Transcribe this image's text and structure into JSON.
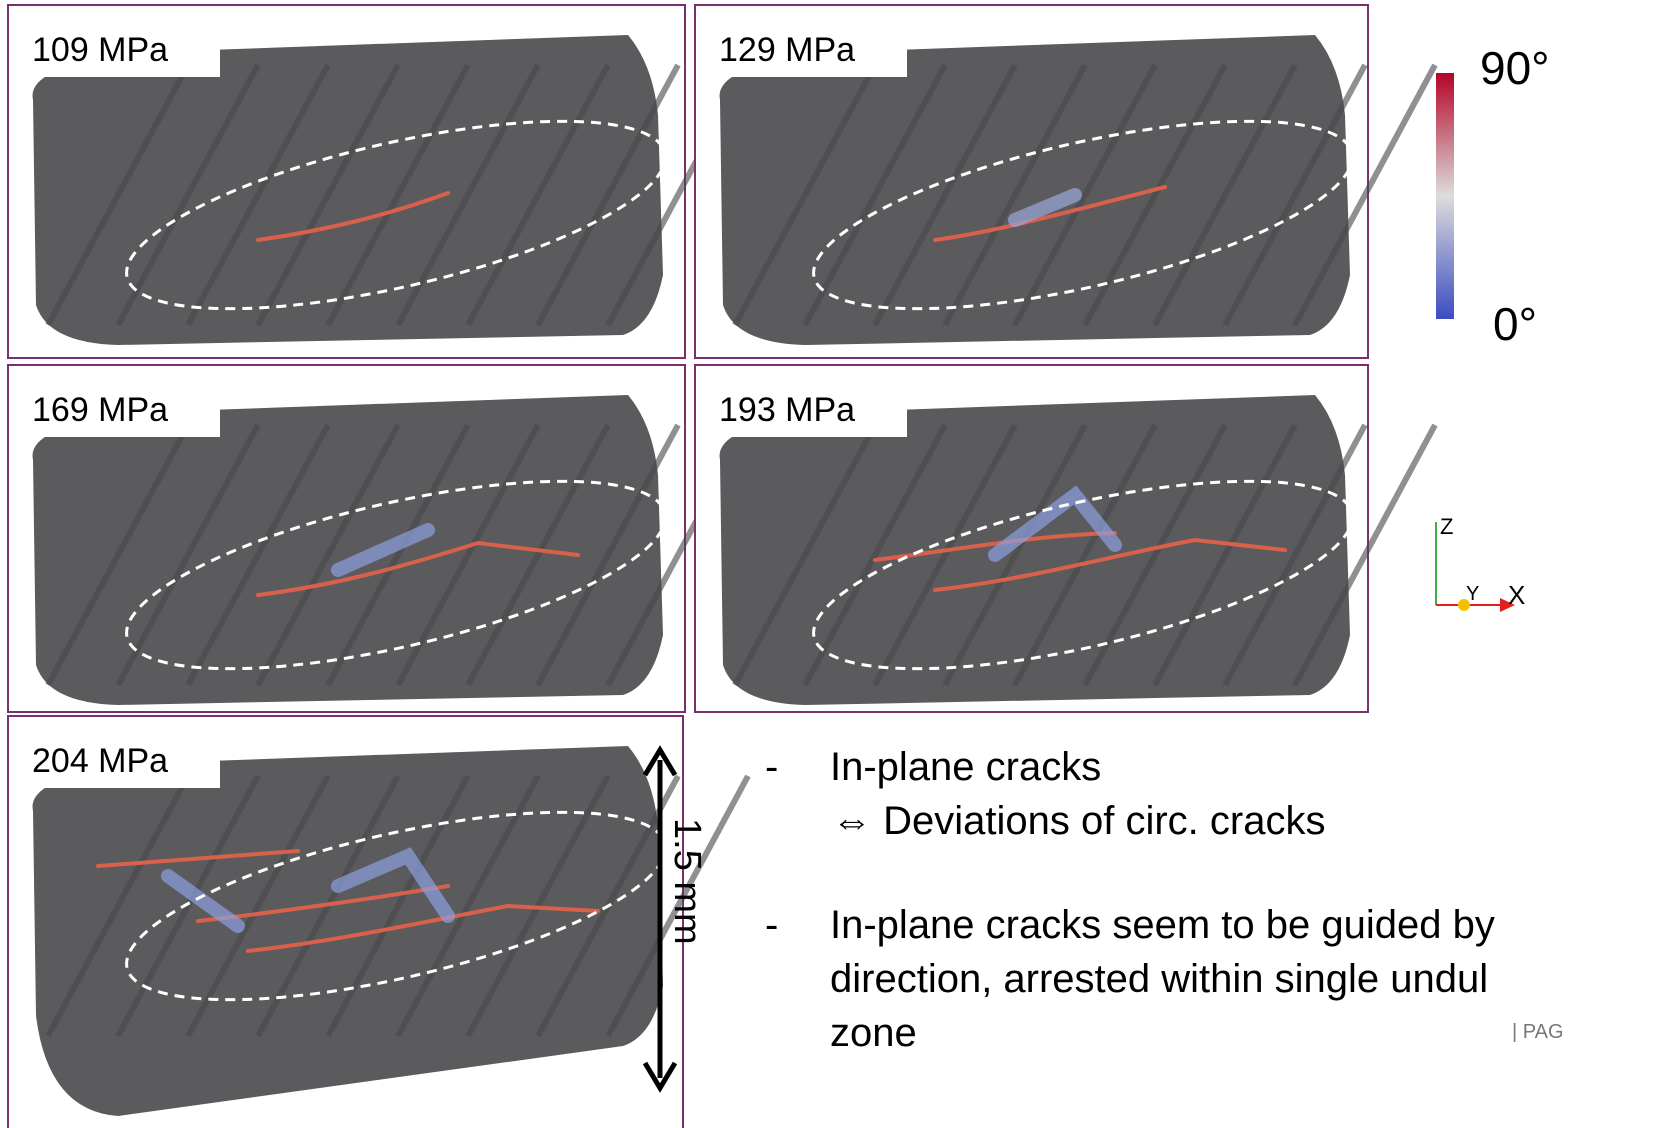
{
  "panels": [
    {
      "label": "109 MPa"
    },
    {
      "label": "129 MPa"
    },
    {
      "label": "169 MPa"
    },
    {
      "label": "193 MPa"
    },
    {
      "label": "204 MPa"
    }
  ],
  "colorbar": {
    "max_label": "90°",
    "min_label": "0°"
  },
  "axes": {
    "z": "Z",
    "y": "Y",
    "x": "X"
  },
  "scale_bar": "1.5 mm",
  "bullets": [
    {
      "marker": "-",
      "lines": [
        "In-plane cracks",
        "⇔  Deviations of circ. cracks"
      ]
    },
    {
      "marker": "-",
      "lines": [
        "In-plane cracks seem to be guided by",
        "direction, arrested within single undul",
        "zone"
      ]
    }
  ],
  "footer": "| PAG"
}
